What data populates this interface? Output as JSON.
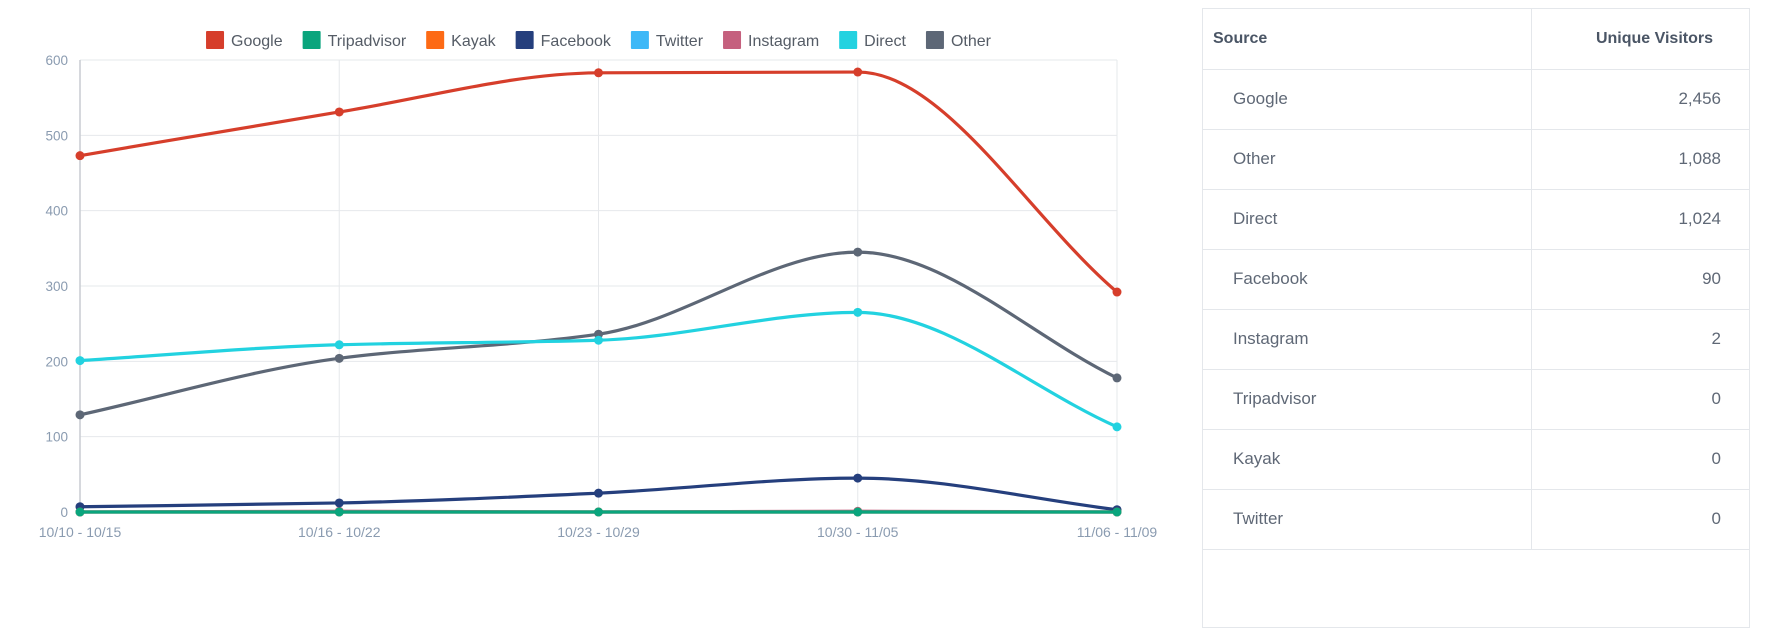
{
  "chart_data": {
    "type": "line",
    "title": "",
    "xlabel": "",
    "ylabel": "",
    "categories": [
      "10/10 - 10/15",
      "10/16 - 10/22",
      "10/23 - 10/29",
      "10/30 - 11/05",
      "11/06 - 11/09"
    ],
    "ylim": [
      0,
      600
    ],
    "yticks": [
      0,
      100,
      200,
      300,
      400,
      500,
      600
    ],
    "grid": true,
    "legend_position": "top",
    "series": [
      {
        "name": "Google",
        "color": "#d63e2b",
        "values": [
          473,
          531,
          583,
          584,
          292
        ]
      },
      {
        "name": "Tripadvisor",
        "color": "#0aa57d",
        "values": [
          0,
          0,
          0,
          0,
          0
        ]
      },
      {
        "name": "Kayak",
        "color": "#fd6a15",
        "values": [
          0,
          0,
          0,
          0,
          0
        ]
      },
      {
        "name": "Facebook",
        "color": "#253f7d",
        "values": [
          7,
          12,
          25,
          45,
          3
        ]
      },
      {
        "name": "Twitter",
        "color": "#3db8f7",
        "values": [
          0,
          0,
          0,
          0,
          0
        ]
      },
      {
        "name": "Instagram",
        "color": "#c5607e",
        "values": [
          0,
          1,
          0,
          1,
          0
        ]
      },
      {
        "name": "Direct",
        "color": "#22d2e0",
        "values": [
          201,
          222,
          228,
          265,
          113
        ]
      },
      {
        "name": "Other",
        "color": "#5d6776",
        "values": [
          129,
          204,
          236,
          345,
          178
        ]
      }
    ]
  },
  "table": {
    "headers": {
      "source": "Source",
      "visitors": "Unique Visitors"
    },
    "rows": [
      {
        "source": "Google",
        "visitors": "2,456"
      },
      {
        "source": "Other",
        "visitors": "1,088"
      },
      {
        "source": "Direct",
        "visitors": "1,024"
      },
      {
        "source": "Facebook",
        "visitors": "90"
      },
      {
        "source": "Instagram",
        "visitors": "2"
      },
      {
        "source": "Tripadvisor",
        "visitors": "0"
      },
      {
        "source": "Kayak",
        "visitors": "0"
      },
      {
        "source": "Twitter",
        "visitors": "0"
      }
    ]
  }
}
